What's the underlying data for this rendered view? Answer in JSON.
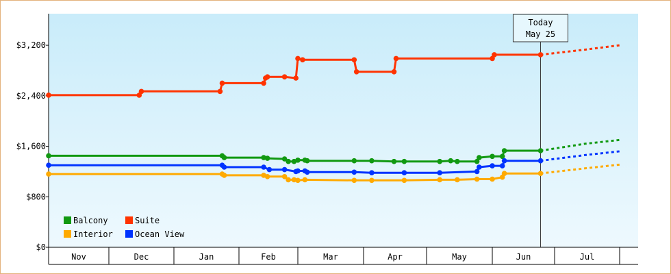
{
  "chart_data": {
    "type": "line",
    "x_unit": "date",
    "today": {
      "line1": "Today",
      "line2": "May 25"
    },
    "y_ticks": [
      {
        "value": 0,
        "label": "$0"
      },
      {
        "value": 800,
        "label": "$800"
      },
      {
        "value": 1600,
        "label": "$1,600"
      },
      {
        "value": 2400,
        "label": "$2,400"
      },
      {
        "value": 3200,
        "label": "$3,200"
      }
    ],
    "ylim": [
      0,
      3700
    ],
    "months": [
      "Nov",
      "Dec",
      "Jan",
      "Feb",
      "Mar",
      "Apr",
      "May",
      "Jun",
      "Jul"
    ],
    "grid": false,
    "legend_position": "bottom-left",
    "series": [
      {
        "name": "Suite",
        "color": "#ff3300",
        "points": [
          [
            "Oct 26",
            2410
          ],
          [
            "Nov 15",
            2410
          ],
          [
            "Nov 16",
            2470
          ],
          [
            "Dec 23",
            2470
          ],
          [
            "Dec 24",
            2600
          ],
          [
            "Jan 14",
            2600
          ],
          [
            "Jan 15",
            2680
          ],
          [
            "Jan 16",
            2700
          ],
          [
            "Jan 25",
            2700
          ],
          [
            "Jan 31",
            2680
          ],
          [
            "Feb 1",
            2990
          ],
          [
            "Feb 3",
            2970
          ],
          [
            "Feb 25",
            2970
          ],
          [
            "Feb 26",
            2780
          ],
          [
            "Mar 16",
            2780
          ],
          [
            "Mar 17",
            2990
          ],
          [
            "May 1",
            2990
          ],
          [
            "May 2",
            3050
          ],
          [
            "May 25",
            3050
          ]
        ],
        "forecast": [
          [
            "May 25",
            3050
          ],
          [
            "Jun 15",
            3130
          ],
          [
            "Jul 1",
            3200
          ],
          [
            "Aug 1",
            3360
          ]
        ]
      },
      {
        "name": "Balcony",
        "color": "#119911",
        "points": [
          [
            "Oct 26",
            1450
          ],
          [
            "Dec 24",
            1450
          ],
          [
            "Dec 25",
            1420
          ],
          [
            "Jan 14",
            1420
          ],
          [
            "Jan 16",
            1410
          ],
          [
            "Jan 25",
            1400
          ],
          [
            "Jan 27",
            1360
          ],
          [
            "Jan 30",
            1360
          ],
          [
            "Feb 1",
            1380
          ],
          [
            "Feb 4",
            1380
          ],
          [
            "Feb 5",
            1370
          ],
          [
            "Feb 25",
            1370
          ],
          [
            "Mar 5",
            1370
          ],
          [
            "Mar 16",
            1360
          ],
          [
            "Mar 21",
            1360
          ],
          [
            "Apr 7",
            1360
          ],
          [
            "Apr 12",
            1370
          ],
          [
            "Apr 15",
            1360
          ],
          [
            "Apr 24",
            1360
          ],
          [
            "Apr 25",
            1420
          ],
          [
            "May 1",
            1440
          ],
          [
            "May 6",
            1440
          ],
          [
            "May 7",
            1530
          ],
          [
            "May 25",
            1530
          ]
        ],
        "forecast": [
          [
            "May 25",
            1530
          ],
          [
            "Jun 15",
            1640
          ],
          [
            "Jul 1",
            1700
          ],
          [
            "Aug 1",
            1850
          ]
        ]
      },
      {
        "name": "Ocean View",
        "color": "#0033ff",
        "points": [
          [
            "Oct 26",
            1300
          ],
          [
            "Dec 24",
            1300
          ],
          [
            "Dec 25",
            1270
          ],
          [
            "Jan 14",
            1270
          ],
          [
            "Jan 17",
            1230
          ],
          [
            "Jan 25",
            1230
          ],
          [
            "Jan 31",
            1200
          ],
          [
            "Feb 1",
            1210
          ],
          [
            "Feb 4",
            1210
          ],
          [
            "Feb 5",
            1190
          ],
          [
            "Feb 25",
            1190
          ],
          [
            "Mar 5",
            1180
          ],
          [
            "Mar 21",
            1180
          ],
          [
            "Apr 7",
            1180
          ],
          [
            "Apr 24",
            1200
          ],
          [
            "Apr 25",
            1270
          ],
          [
            "May 1",
            1290
          ],
          [
            "May 6",
            1290
          ],
          [
            "May 7",
            1370
          ],
          [
            "May 25",
            1370
          ]
        ],
        "forecast": [
          [
            "May 25",
            1370
          ],
          [
            "Jun 15",
            1460
          ],
          [
            "Jul 1",
            1520
          ],
          [
            "Aug 1",
            1640
          ]
        ]
      },
      {
        "name": "Interior",
        "color": "#ffaa00",
        "points": [
          [
            "Oct 26",
            1160
          ],
          [
            "Dec 24",
            1160
          ],
          [
            "Dec 25",
            1140
          ],
          [
            "Jan 14",
            1140
          ],
          [
            "Jan 16",
            1120
          ],
          [
            "Jan 25",
            1120
          ],
          [
            "Jan 27",
            1070
          ],
          [
            "Jan 30",
            1070
          ],
          [
            "Feb 1",
            1060
          ],
          [
            "Feb 4",
            1070
          ],
          [
            "Feb 25",
            1060
          ],
          [
            "Mar 5",
            1060
          ],
          [
            "Mar 21",
            1060
          ],
          [
            "Apr 7",
            1070
          ],
          [
            "Apr 15",
            1070
          ],
          [
            "Apr 24",
            1080
          ],
          [
            "May 1",
            1080
          ],
          [
            "May 6",
            1110
          ],
          [
            "May 7",
            1170
          ],
          [
            "May 25",
            1170
          ]
        ],
        "forecast": [
          [
            "May 25",
            1170
          ],
          [
            "Jun 15",
            1250
          ],
          [
            "Jul 1",
            1310
          ],
          [
            "Aug 1",
            1420
          ]
        ]
      }
    ],
    "legend": [
      {
        "name": "Balcony",
        "color": "#119911"
      },
      {
        "name": "Suite",
        "color": "#ff3300"
      },
      {
        "name": "Interior",
        "color": "#ffaa00"
      },
      {
        "name": "Ocean View",
        "color": "#0033ff"
      }
    ]
  }
}
